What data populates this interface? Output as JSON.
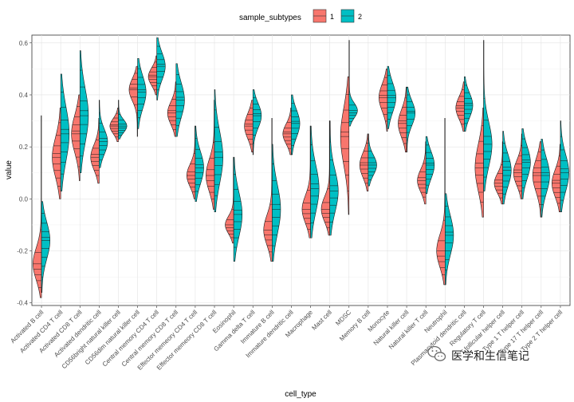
{
  "chart_data": {
    "type": "split-violin",
    "title": "",
    "xlabel": "cell_type",
    "ylabel": "value",
    "ylim": [
      -0.41,
      0.63
    ],
    "yticks": [
      -0.4,
      -0.2,
      0.0,
      0.2,
      0.4,
      0.6
    ],
    "ytick_labels": [
      "-0.4",
      "-0.2",
      "0.0",
      "0.2",
      "0.4",
      "0.6"
    ],
    "legend": {
      "title": "sample_subtypes",
      "position": "top",
      "entries": [
        {
          "label": "1",
          "color": "#F8766D"
        },
        {
          "label": "2",
          "color": "#00BFC4"
        }
      ]
    },
    "categories": [
      "Activated B cell",
      "Activated CD4 T cell",
      "Activated CD8 T cell",
      "Activated dendritic cell",
      "CD56bright natural killer cell",
      "CD56dim natural killer cell",
      "Central memory CD4 T cell",
      "Central memory CD8 T cell",
      "Effector memeory CD4 T cell",
      "Effector memeory CD8 T cell",
      "Eosinophil",
      "Gamma delta T cell",
      "Immature  B cell",
      "Immature dendritic cell",
      "Macrophage",
      "Mast cell",
      "MDSC",
      "Memory B cell",
      "Monocyte",
      "Natural killer cell",
      "Natural killer T cell",
      "Neutrophil",
      "Plasmacytoid dendritic cell",
      "Regulatory T cell",
      "T follicular helper cell",
      "Type 1 T helper cell",
      "Type 17 T helper cell",
      "Type 2 T helper cell"
    ],
    "series": [
      {
        "name": "1",
        "color": "#F8766D",
        "min": [
          -0.38,
          0.0,
          0.07,
          0.06,
          0.22,
          0.24,
          0.4,
          0.24,
          0.0,
          -0.04,
          -0.17,
          0.18,
          -0.24,
          0.17,
          -0.15,
          -0.14,
          -0.06,
          0.03,
          0.26,
          0.18,
          -0.02,
          -0.33,
          0.26,
          -0.07,
          -0.02,
          0.0,
          -0.07,
          -0.05
        ],
        "median": [
          -0.25,
          0.16,
          0.25,
          0.16,
          0.28,
          0.42,
          0.47,
          0.33,
          0.09,
          0.09,
          -0.1,
          0.28,
          -0.12,
          0.25,
          -0.04,
          -0.04,
          0.24,
          0.13,
          0.39,
          0.29,
          0.07,
          -0.2,
          0.35,
          0.12,
          0.06,
          0.1,
          0.09,
          0.06
        ],
        "max": [
          0.32,
          0.35,
          0.4,
          0.31,
          0.35,
          0.51,
          0.55,
          0.45,
          0.28,
          0.38,
          0.16,
          0.38,
          0.31,
          0.35,
          0.28,
          0.3,
          0.47,
          0.25,
          0.5,
          0.43,
          0.22,
          0.31,
          0.45,
          0.35,
          0.22,
          0.25,
          0.22,
          0.21
        ]
      },
      {
        "name": "2",
        "color": "#00BFC4",
        "min": [
          -0.36,
          0.03,
          0.1,
          0.12,
          0.23,
          0.27,
          0.38,
          0.24,
          -0.01,
          -0.05,
          -0.24,
          0.17,
          -0.24,
          0.17,
          -0.15,
          -0.14,
          0.28,
          0.05,
          0.27,
          0.18,
          0.02,
          -0.33,
          0.26,
          0.03,
          -0.02,
          0.0,
          -0.07,
          -0.05
        ],
        "median": [
          -0.16,
          0.25,
          0.32,
          0.22,
          0.28,
          0.41,
          0.51,
          0.38,
          0.12,
          0.16,
          -0.06,
          0.32,
          -0.04,
          0.29,
          0.04,
          0.03,
          0.34,
          0.13,
          0.39,
          0.33,
          0.13,
          -0.14,
          0.36,
          0.21,
          0.11,
          0.14,
          0.09,
          0.1
        ],
        "max": [
          -0.01,
          0.48,
          0.57,
          0.38,
          0.38,
          0.54,
          0.62,
          0.52,
          0.28,
          0.42,
          0.16,
          0.42,
          0.21,
          0.4,
          0.28,
          0.3,
          0.61,
          0.25,
          0.51,
          0.43,
          0.24,
          0.02,
          0.47,
          0.61,
          0.26,
          0.27,
          0.23,
          0.3
        ]
      }
    ]
  },
  "watermark": {
    "text": "医学和生信笔记",
    "icon": "wechat-icon"
  }
}
